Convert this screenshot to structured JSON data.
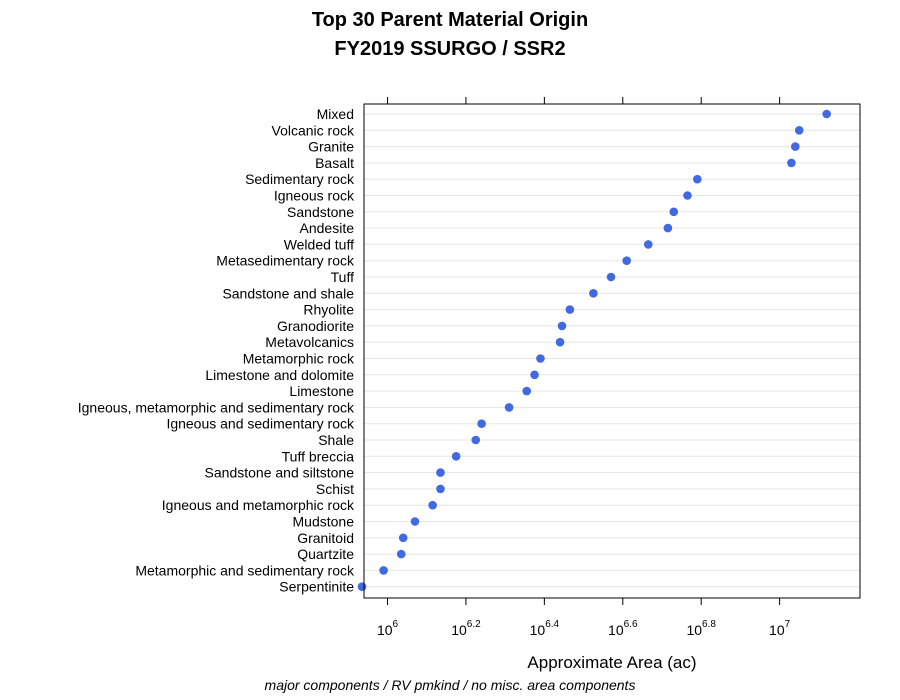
{
  "chart_data": {
    "type": "scatter",
    "title": "Top 30 Parent Material Origin",
    "subtitle": "FY2019 SSURGO / SSR2",
    "xlabel": "Approximate Area (ac)",
    "footnote": "major components / RV pmkind / no misc. area components",
    "x_scale": "log10",
    "xlim": [
      5.94,
      7.205
    ],
    "x_ticks": [
      {
        "base": "10",
        "exp": "6",
        "value": 6.0
      },
      {
        "base": "10",
        "exp": "6.2",
        "value": 6.2
      },
      {
        "base": "10",
        "exp": "6.4",
        "value": 6.4
      },
      {
        "base": "10",
        "exp": "6.6",
        "value": 6.6
      },
      {
        "base": "10",
        "exp": "6.8",
        "value": 6.8
      },
      {
        "base": "10",
        "exp": "7",
        "value": 7.0
      }
    ],
    "grid": "horizontal",
    "point_color": "#4169e1",
    "categories": [
      "Mixed",
      "Volcanic rock",
      "Granite",
      "Basalt",
      "Sedimentary rock",
      "Igneous rock",
      "Sandstone",
      "Andesite",
      "Welded tuff",
      "Metasedimentary rock",
      "Tuff",
      "Sandstone and shale",
      "Rhyolite",
      "Granodiorite",
      "Metavolcanics",
      "Metamorphic rock",
      "Limestone and dolomite",
      "Limestone",
      "Igneous, metamorphic and sedimentary rock",
      "Igneous and sedimentary rock",
      "Shale",
      "Tuff breccia",
      "Sandstone and siltstone",
      "Schist",
      "Igneous and metamorphic rock",
      "Mudstone",
      "Granitoid",
      "Quartzite",
      "Metamorphic and sedimentary rock",
      "Serpentinite"
    ],
    "log10_values": [
      7.12,
      7.05,
      7.04,
      7.03,
      6.79,
      6.765,
      6.73,
      6.715,
      6.665,
      6.61,
      6.57,
      6.525,
      6.465,
      6.445,
      6.44,
      6.39,
      6.375,
      6.355,
      6.31,
      6.24,
      6.225,
      6.175,
      6.135,
      6.135,
      6.115,
      6.07,
      6.04,
      6.035,
      5.99,
      5.935
    ]
  }
}
